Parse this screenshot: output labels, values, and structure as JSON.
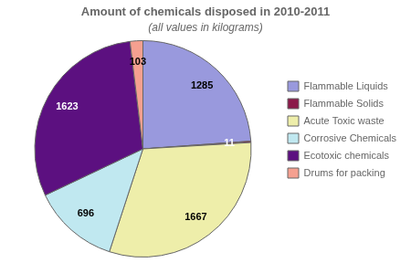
{
  "chart_data": {
    "type": "pie",
    "title": "Amount of chemicals disposed in 2010-2011",
    "subtitle": "(all values in kilograms)",
    "categories": [
      "Flammable Liquids",
      "Flammable Solids",
      "Acute Toxic waste",
      "Corrosive Chemicals",
      "Ecotoxic chemicals",
      "Drums for packing"
    ],
    "values": [
      1285,
      11,
      1667,
      696,
      1623,
      103
    ],
    "colors": [
      "#9999dd",
      "#8b1a4a",
      "#eeeeaa",
      "#c0e8f0",
      "#5c1080",
      "#f5a090"
    ],
    "data_labels": true,
    "legend": "right"
  }
}
